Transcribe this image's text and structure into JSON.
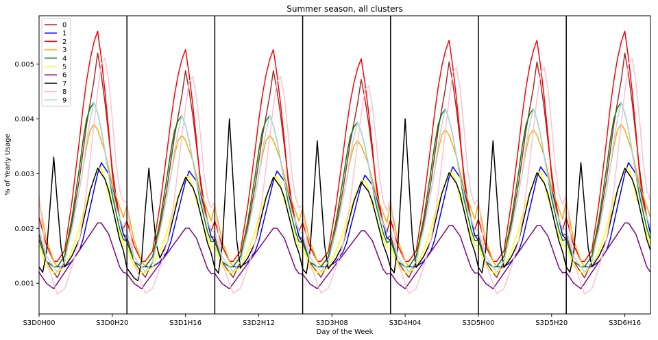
{
  "chart_data": {
    "type": "line",
    "title": "Summer season, all clusters",
    "xlabel": "Day of the Week",
    "ylabel": "% of Yearly Usage",
    "ylim": [
      0.00044,
      0.00588
    ],
    "xlim": [
      0,
      167
    ],
    "yticks": [
      0.001,
      0.002,
      0.003,
      0.004,
      0.005
    ],
    "ytick_labels": [
      "0.001",
      "0.002",
      "0.003",
      "0.004",
      "0.005"
    ],
    "xticks": [
      0,
      20,
      40,
      60,
      80,
      100,
      120,
      140,
      160
    ],
    "xtick_labels": [
      "S3D0H00",
      "S3D0H20",
      "S3D1H16",
      "S3D2H12",
      "S3D3H08",
      "S3D4H04",
      "S3D5H00",
      "S3D5H20",
      "S3D6H16"
    ],
    "day_boundaries": [
      24,
      48,
      72,
      96,
      120,
      144
    ],
    "legend_position": "upper-left",
    "grid": false,
    "day_profiles": {
      "hours": [
        0,
        2,
        4,
        5,
        7,
        9,
        11,
        12,
        13,
        14,
        15,
        16,
        17,
        18,
        19,
        20,
        21,
        22,
        23
      ],
      "series": [
        {
          "name": "0",
          "color": "#a52a2a",
          "values": [
            0.0019,
            0.0014,
            0.0012,
            0.0011,
            0.0014,
            0.0021,
            0.0029,
            0.0034,
            0.0039,
            0.0043,
            0.0047,
            0.0052,
            0.0048,
            0.0043,
            0.0037,
            0.0031,
            0.0026,
            0.0022,
            0.0019
          ]
        },
        {
          "name": "1",
          "color": "#0000ff",
          "values": [
            0.0018,
            0.0014,
            0.0013,
            0.0013,
            0.0013,
            0.0014,
            0.0016,
            0.0018,
            0.0021,
            0.0024,
            0.0027,
            0.003,
            0.0032,
            0.0031,
            0.003,
            0.0028,
            0.0025,
            0.0022,
            0.0019
          ]
        },
        {
          "name": "2",
          "color": "#ff0000",
          "values": [
            0.0022,
            0.0017,
            0.0014,
            0.0014,
            0.0016,
            0.0025,
            0.0036,
            0.0042,
            0.0047,
            0.0051,
            0.0054,
            0.0056,
            0.0051,
            0.0045,
            0.0038,
            0.003,
            0.0025,
            0.0022,
            0.002
          ]
        },
        {
          "name": "3",
          "color": "#ffa500",
          "values": [
            0.0025,
            0.0018,
            0.0014,
            0.0013,
            0.0015,
            0.002,
            0.0027,
            0.0031,
            0.0035,
            0.0038,
            0.0039,
            0.0038,
            0.0036,
            0.0034,
            0.0031,
            0.0028,
            0.0026,
            0.0024,
            0.0022
          ]
        },
        {
          "name": "4",
          "color": "#008000",
          "values": [
            0.0018,
            0.0014,
            0.0013,
            0.0013,
            0.0015,
            0.0022,
            0.0031,
            0.0036,
            0.004,
            0.0042,
            0.0043,
            0.0041,
            0.0038,
            0.0034,
            0.003,
            0.0026,
            0.0023,
            0.002,
            0.0018
          ]
        },
        {
          "name": "5",
          "color": "#ffff00",
          "values": [
            0.0017,
            0.0013,
            0.0012,
            0.0012,
            0.0013,
            0.0016,
            0.002,
            0.0023,
            0.0025,
            0.0027,
            0.0029,
            0.0031,
            0.0031,
            0.0029,
            0.0026,
            0.0024,
            0.0021,
            0.0019,
            0.0017
          ]
        },
        {
          "name": "6",
          "color": "#800080",
          "values": [
            0.0012,
            0.001,
            0.0009,
            0.001,
            0.0012,
            0.0014,
            0.0016,
            0.0017,
            0.0018,
            0.0019,
            0.002,
            0.0021,
            0.0021,
            0.002,
            0.0019,
            0.0017,
            0.0015,
            0.0013,
            0.0012
          ]
        },
        {
          "name": "7",
          "color": "#000000",
          "values": [
            0.0013,
            0.0011,
            0.001,
            0.0012,
            0.0013,
            0.0015,
            0.0018,
            0.0021,
            0.0024,
            0.0027,
            0.0029,
            0.0031,
            0.003,
            0.0029,
            0.0027,
            0.0024,
            0.0021,
            0.0018,
            0.0016
          ]
        },
        {
          "name": "8",
          "color": "#ffc0cb",
          "values": [
            0.0026,
            0.0014,
            0.001,
            0.0008,
            0.0009,
            0.0013,
            0.0018,
            0.0022,
            0.0027,
            0.0033,
            0.0039,
            0.0045,
            0.005,
            0.0051,
            0.0047,
            0.004,
            0.0032,
            0.0027,
            0.0025
          ]
        },
        {
          "name": "9",
          "color": "#add8e6",
          "values": [
            0.002,
            0.0015,
            0.0013,
            0.0012,
            0.0014,
            0.002,
            0.0027,
            0.0031,
            0.0036,
            0.004,
            0.0043,
            0.0041,
            0.0038,
            0.0034,
            0.003,
            0.0027,
            0.0024,
            0.0022,
            0.002
          ]
        }
      ],
      "day_scale": [
        1.0,
        0.92,
        0.92,
        0.88,
        0.96,
        0.96,
        1.0
      ]
    },
    "series_7_spikes": [
      {
        "x": 4,
        "y": 0.0033
      },
      {
        "x": 30,
        "y": 0.0031
      },
      {
        "x": 52,
        "y": 0.004
      },
      {
        "x": 76,
        "y": 0.0036
      },
      {
        "x": 100,
        "y": 0.004
      },
      {
        "x": 124,
        "y": 0.0036
      },
      {
        "x": 148,
        "y": 0.0032
      }
    ]
  }
}
